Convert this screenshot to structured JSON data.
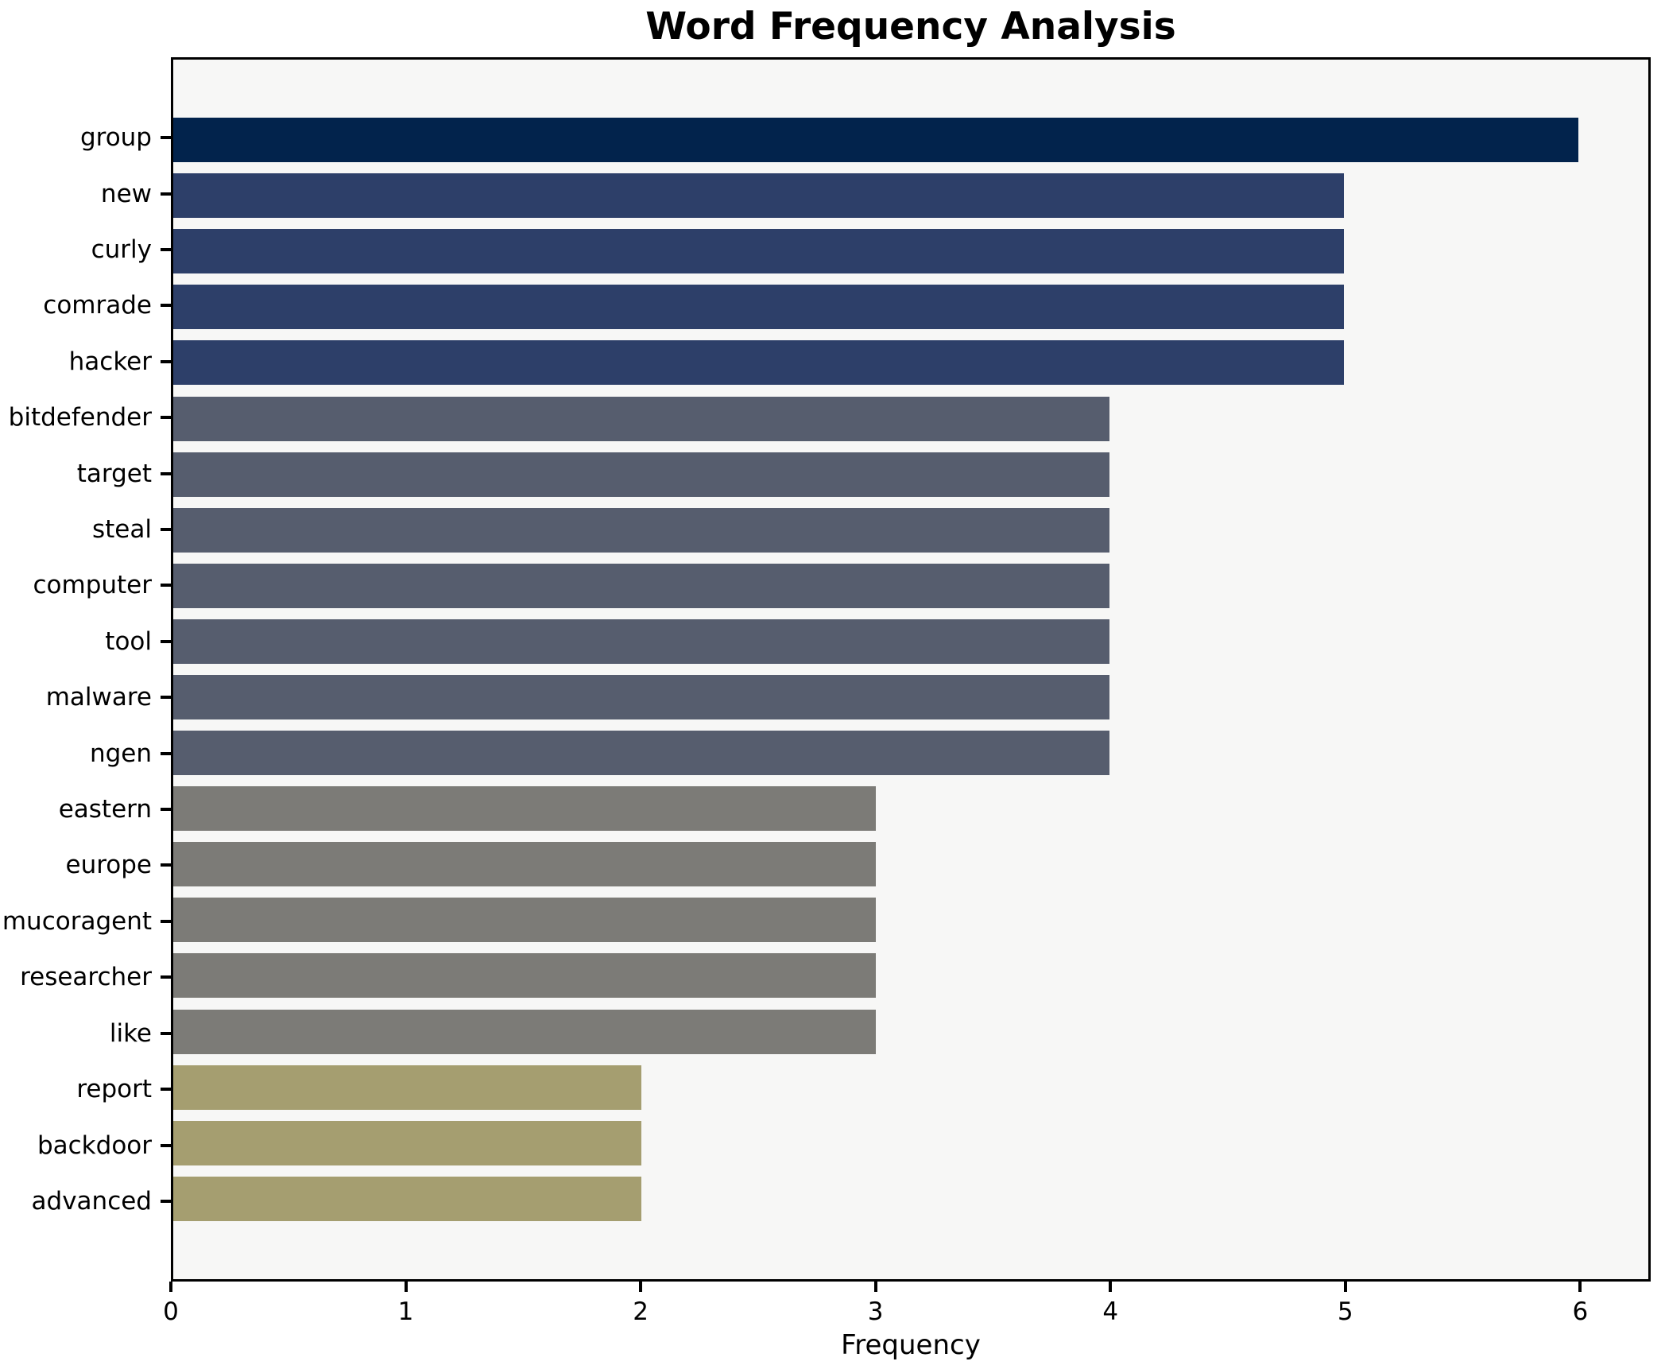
{
  "chart_data": {
    "type": "bar",
    "orientation": "horizontal",
    "title": "Word Frequency Analysis",
    "xlabel": "Frequency",
    "ylabel": "",
    "categories": [
      "group",
      "new",
      "curly",
      "comrade",
      "hacker",
      "bitdefender",
      "target",
      "steal",
      "computer",
      "tool",
      "malware",
      "ngen",
      "eastern",
      "europe",
      "mucoragent",
      "researcher",
      "like",
      "report",
      "backdoor",
      "advanced"
    ],
    "values": [
      6,
      5,
      5,
      5,
      5,
      4,
      4,
      4,
      4,
      4,
      4,
      4,
      3,
      3,
      3,
      3,
      3,
      2,
      2,
      2
    ],
    "bar_colors": [
      "#02234c",
      "#2d3f69",
      "#2d3f69",
      "#2d3f69",
      "#2d3f69",
      "#565d6e",
      "#565d6e",
      "#565d6e",
      "#565d6e",
      "#565d6e",
      "#565d6e",
      "#565d6e",
      "#7c7b77",
      "#7c7b77",
      "#7c7b77",
      "#7c7b77",
      "#7c7b77",
      "#a59e70",
      "#a59e70",
      "#a59e70"
    ],
    "value_color_map": {
      "6": "#02234c",
      "5": "#2d3f69",
      "4": "#565d6e",
      "3": "#7c7b77",
      "2": "#a59e70"
    },
    "xlim": [
      0,
      6.3
    ],
    "xticks": [
      0,
      1,
      2,
      3,
      4,
      5,
      6
    ],
    "grid": false,
    "legend": false,
    "plot_background": "#f7f7f6",
    "figure_background": "#ffffff",
    "spine_color": "#000000"
  }
}
